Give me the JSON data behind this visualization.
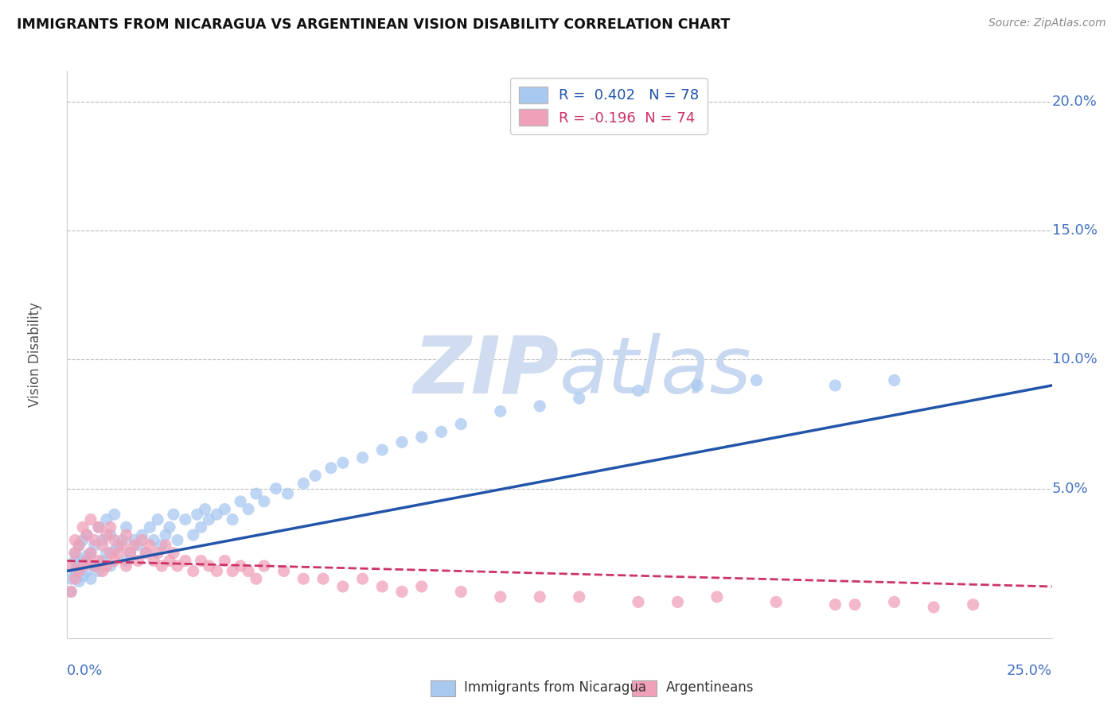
{
  "title": "IMMIGRANTS FROM NICARAGUA VS ARGENTINEAN VISION DISABILITY CORRELATION CHART",
  "source": "Source: ZipAtlas.com",
  "ylabel": "Vision Disability",
  "y_ticks": [
    0.05,
    0.1,
    0.15,
    0.2
  ],
  "y_tick_labels": [
    "5.0%",
    "10.0%",
    "15.0%",
    "20.0%"
  ],
  "x_min": 0.0,
  "x_max": 0.25,
  "y_min": -0.008,
  "y_max": 0.212,
  "blue_R": 0.402,
  "blue_N": 78,
  "pink_R": -0.196,
  "pink_N": 74,
  "blue_color": "#A8C8F0",
  "pink_color": "#F0A0B8",
  "blue_line_color": "#2255AA",
  "pink_line_color": "#CC3366",
  "grid_color": "#BBBBBB",
  "title_color": "#111111",
  "axis_label_color": "#4472C4",
  "watermark_color": "#D0DCF0",
  "background_color": "#FFFFFF",
  "blue_scatter_x": [
    0.001,
    0.001,
    0.002,
    0.002,
    0.002,
    0.003,
    0.003,
    0.003,
    0.004,
    0.004,
    0.004,
    0.005,
    0.005,
    0.005,
    0.006,
    0.006,
    0.007,
    0.007,
    0.008,
    0.008,
    0.009,
    0.009,
    0.01,
    0.01,
    0.011,
    0.011,
    0.012,
    0.012,
    0.013,
    0.014,
    0.015,
    0.015,
    0.016,
    0.017,
    0.018,
    0.019,
    0.02,
    0.021,
    0.022,
    0.023,
    0.024,
    0.025,
    0.026,
    0.027,
    0.028,
    0.03,
    0.032,
    0.033,
    0.034,
    0.035,
    0.036,
    0.038,
    0.04,
    0.042,
    0.044,
    0.046,
    0.048,
    0.05,
    0.053,
    0.056,
    0.06,
    0.063,
    0.067,
    0.07,
    0.075,
    0.08,
    0.085,
    0.09,
    0.095,
    0.1,
    0.11,
    0.12,
    0.13,
    0.145,
    0.16,
    0.175,
    0.195,
    0.21
  ],
  "blue_scatter_y": [
    0.01,
    0.015,
    0.018,
    0.022,
    0.025,
    0.014,
    0.02,
    0.028,
    0.016,
    0.022,
    0.03,
    0.018,
    0.024,
    0.032,
    0.015,
    0.025,
    0.02,
    0.028,
    0.018,
    0.035,
    0.022,
    0.03,
    0.025,
    0.038,
    0.02,
    0.032,
    0.026,
    0.04,
    0.028,
    0.03,
    0.022,
    0.035,
    0.025,
    0.03,
    0.028,
    0.032,
    0.025,
    0.035,
    0.03,
    0.038,
    0.028,
    0.032,
    0.035,
    0.04,
    0.03,
    0.038,
    0.032,
    0.04,
    0.035,
    0.042,
    0.038,
    0.04,
    0.042,
    0.038,
    0.045,
    0.042,
    0.048,
    0.045,
    0.05,
    0.048,
    0.052,
    0.055,
    0.058,
    0.06,
    0.062,
    0.065,
    0.068,
    0.07,
    0.072,
    0.075,
    0.08,
    0.082,
    0.085,
    0.088,
    0.09,
    0.092,
    0.09,
    0.092
  ],
  "pink_scatter_x": [
    0.001,
    0.001,
    0.002,
    0.002,
    0.002,
    0.003,
    0.003,
    0.004,
    0.004,
    0.005,
    0.005,
    0.006,
    0.006,
    0.007,
    0.007,
    0.008,
    0.008,
    0.009,
    0.009,
    0.01,
    0.01,
    0.011,
    0.011,
    0.012,
    0.012,
    0.013,
    0.014,
    0.015,
    0.015,
    0.016,
    0.017,
    0.018,
    0.019,
    0.02,
    0.021,
    0.022,
    0.023,
    0.024,
    0.025,
    0.026,
    0.027,
    0.028,
    0.03,
    0.032,
    0.034,
    0.036,
    0.038,
    0.04,
    0.042,
    0.044,
    0.046,
    0.048,
    0.05,
    0.055,
    0.06,
    0.065,
    0.07,
    0.075,
    0.08,
    0.085,
    0.09,
    0.1,
    0.11,
    0.12,
    0.13,
    0.145,
    0.155,
    0.165,
    0.18,
    0.195,
    0.2,
    0.21,
    0.22,
    0.23
  ],
  "pink_scatter_y": [
    0.01,
    0.02,
    0.015,
    0.025,
    0.03,
    0.018,
    0.028,
    0.02,
    0.035,
    0.022,
    0.032,
    0.025,
    0.038,
    0.02,
    0.03,
    0.022,
    0.035,
    0.018,
    0.028,
    0.02,
    0.032,
    0.025,
    0.035,
    0.022,
    0.03,
    0.025,
    0.028,
    0.02,
    0.032,
    0.025,
    0.028,
    0.022,
    0.03,
    0.025,
    0.028,
    0.022,
    0.025,
    0.02,
    0.028,
    0.022,
    0.025,
    0.02,
    0.022,
    0.018,
    0.022,
    0.02,
    0.018,
    0.022,
    0.018,
    0.02,
    0.018,
    0.015,
    0.02,
    0.018,
    0.015,
    0.015,
    0.012,
    0.015,
    0.012,
    0.01,
    0.012,
    0.01,
    0.008,
    0.008,
    0.008,
    0.006,
    0.006,
    0.008,
    0.006,
    0.005,
    0.005,
    0.006,
    0.004,
    0.005
  ],
  "legend_border_color": "#CCCCCC"
}
